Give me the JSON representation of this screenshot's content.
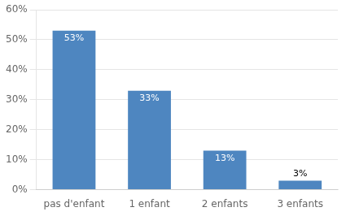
{
  "chart_data": {
    "type": "bar",
    "categories": [
      "pas d'enfant",
      "1 enfant",
      "2 enfants",
      "3 enfants"
    ],
    "values": [
      53,
      33,
      13,
      3
    ],
    "value_labels": [
      "53%",
      "33%",
      "13%",
      "3%"
    ],
    "data_labels": true,
    "color": "#4e86c0",
    "ylim": [
      0,
      60
    ],
    "yticks": [
      {
        "value": 0,
        "label": "0%"
      },
      {
        "value": 10,
        "label": "10%"
      },
      {
        "value": 20,
        "label": "20%"
      },
      {
        "value": 30,
        "label": "30%"
      },
      {
        "value": 40,
        "label": "40%"
      },
      {
        "value": 50,
        "label": "50%"
      },
      {
        "value": 60,
        "label": "60%"
      }
    ],
    "grid": true
  }
}
